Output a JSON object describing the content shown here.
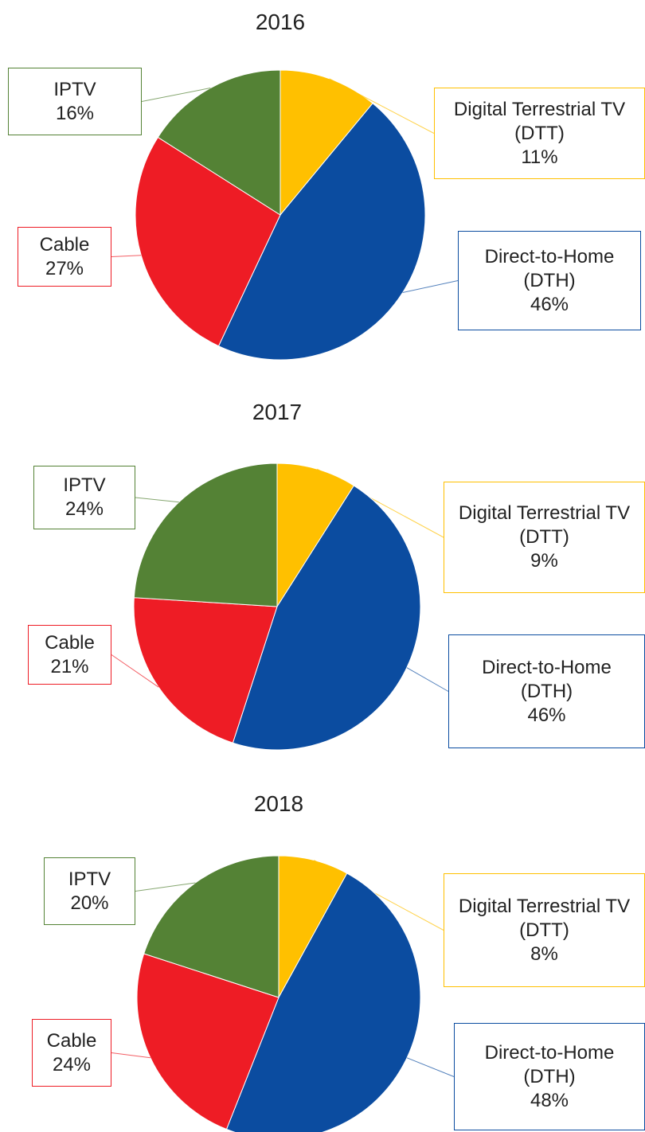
{
  "chart_data": [
    {
      "type": "pie",
      "title": "2016",
      "categories": [
        "Digital Terrestrial TV (DTT)",
        "Direct-to-Home (DTH)",
        "Cable",
        "IPTV"
      ],
      "values": [
        11,
        46,
        27,
        16
      ],
      "value_labels": [
        "11%",
        "46%",
        "27%",
        "16%"
      ],
      "colors": [
        "#ffc000",
        "#0b4ca0",
        "#ee1c25",
        "#548235"
      ]
    },
    {
      "type": "pie",
      "title": "2017",
      "categories": [
        "Digital Terrestrial TV (DTT)",
        "Direct-to-Home (DTH)",
        "Cable",
        "IPTV"
      ],
      "values": [
        9,
        46,
        21,
        24
      ],
      "value_labels": [
        "9%",
        "46%",
        "21%",
        "24%"
      ],
      "colors": [
        "#ffc000",
        "#0b4ca0",
        "#ee1c25",
        "#548235"
      ]
    },
    {
      "type": "pie",
      "title": "2018",
      "categories": [
        "Digital Terrestrial TV (DTT)",
        "Direct-to-Home (DTH)",
        "Cable",
        "IPTV"
      ],
      "values": [
        8,
        48,
        24,
        20
      ],
      "value_labels": [
        "8%",
        "48%",
        "24%",
        "20%"
      ],
      "colors": [
        "#ffc000",
        "#0b4ca0",
        "#ee1c25",
        "#548235"
      ]
    }
  ]
}
